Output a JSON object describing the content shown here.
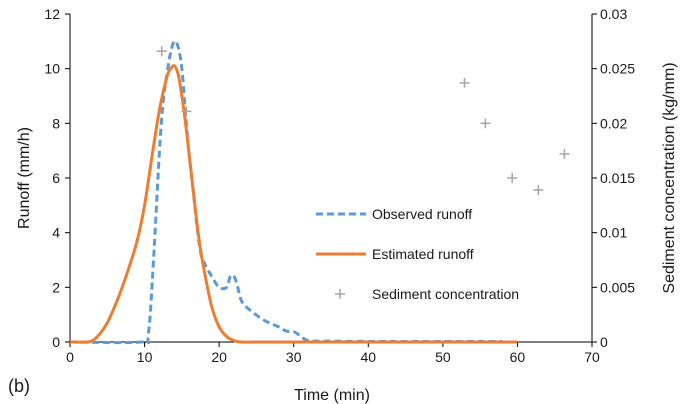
{
  "chart_data": {
    "type": "line",
    "panel_label": "(b)",
    "xlabel": "Time (min)",
    "ylabel": "Runoff (mm/h)",
    "y2label": "Sediment concentration (kg/mm)",
    "xlim": [
      0,
      70
    ],
    "ylim": [
      0,
      12
    ],
    "y2lim": [
      0,
      0.03
    ],
    "x_ticks": [
      "0",
      "10",
      "20",
      "30",
      "40",
      "50",
      "60",
      "70"
    ],
    "y_ticks": [
      "0",
      "2",
      "4",
      "6",
      "8",
      "10",
      "12"
    ],
    "y2_ticks": [
      "0",
      "0.005",
      "0.01",
      "0.015",
      "0.02",
      "0.025",
      "0.03"
    ],
    "grid": false,
    "legend_position": "center-right",
    "series": [
      {
        "name": "Observed runoff",
        "style": "dashed",
        "color": "#5b9bd5",
        "axis": "left",
        "x": [
          0,
          9.5,
          10.5,
          11.2,
          12,
          12.5,
          13,
          13.5,
          14,
          14.5,
          15,
          15.5,
          16,
          16.5,
          17,
          17.5,
          18,
          19,
          20,
          21,
          21.5,
          22,
          22.5,
          23,
          24,
          26,
          28,
          29,
          30,
          31,
          32,
          35,
          40,
          45,
          50,
          55,
          58
        ],
        "y": [
          0,
          0,
          0.3,
          3.0,
          7.0,
          8.8,
          9.8,
          10.6,
          11.0,
          10.8,
          10.0,
          8.3,
          6.8,
          5.6,
          4.3,
          3.3,
          2.9,
          2.4,
          2.0,
          2.0,
          2.4,
          2.4,
          2.0,
          1.5,
          1.2,
          0.8,
          0.55,
          0.4,
          0.38,
          0.2,
          0.05,
          0.03,
          0.02,
          0.02,
          0.02,
          0.02,
          0.02
        ]
      },
      {
        "name": "Estimated runoff",
        "style": "solid",
        "color": "#ed7d31",
        "axis": "left",
        "x": [
          0,
          2,
          3,
          4,
          5,
          6,
          7,
          8,
          9,
          10,
          11,
          12,
          13,
          13.5,
          14,
          14.5,
          15,
          15.5,
          16,
          16.5,
          17,
          17.5,
          18,
          19,
          20,
          21,
          22,
          23,
          25,
          30,
          40,
          50,
          60
        ],
        "y": [
          0,
          0,
          0.05,
          0.3,
          0.7,
          1.3,
          2.0,
          2.8,
          3.7,
          5.0,
          6.8,
          8.5,
          9.7,
          10.0,
          10.1,
          9.8,
          9.0,
          8.0,
          6.8,
          5.6,
          4.4,
          3.4,
          2.6,
          1.3,
          0.55,
          0.2,
          0.05,
          0.0,
          0,
          0,
          0,
          0,
          0
        ]
      },
      {
        "name": "Sediment concentration",
        "style": "markers-plus",
        "color": "#a6a6a6",
        "axis": "right",
        "x": [
          12.3,
          15.6,
          52.9,
          55.7,
          59.3,
          62.8,
          66.3
        ],
        "y": [
          0.0266,
          0.0211,
          0.0237,
          0.02,
          0.015,
          0.0139,
          0.0172
        ]
      }
    ]
  }
}
